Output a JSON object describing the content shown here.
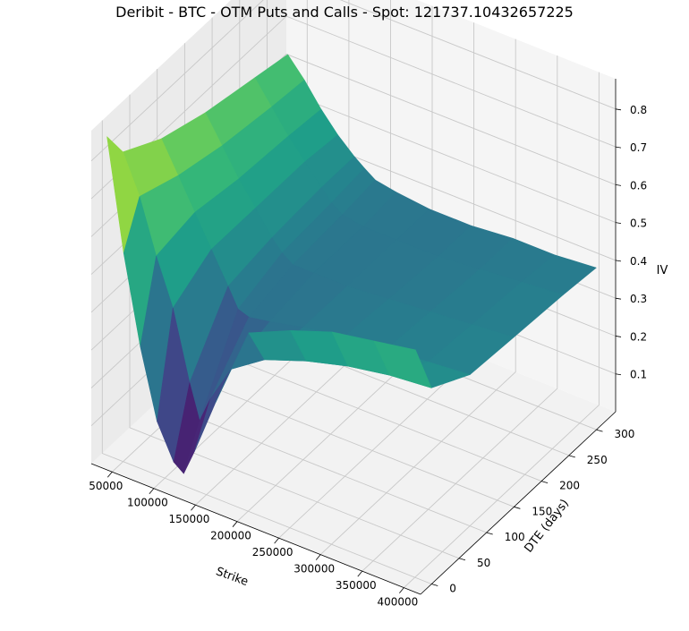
{
  "chart_data": {
    "type": "surface3d",
    "title": "Deribit - BTC - OTM Puts and Calls - Spot: 121737.10432657225",
    "xlabel": "Strike",
    "ylabel": "DTE (days)",
    "zlabel": "IV",
    "x_ticks": [
      "50000",
      "100000",
      "150000",
      "200000",
      "250000",
      "300000",
      "350000",
      "400000"
    ],
    "y_ticks": [
      "0",
      "50",
      "100",
      "150",
      "200",
      "250",
      "300"
    ],
    "z_ticks": [
      "0.1",
      "0.2",
      "0.3",
      "0.4",
      "0.5",
      "0.6",
      "0.7",
      "0.8"
    ],
    "xlim": [
      25000,
      420000
    ],
    "ylim": [
      -20,
      335
    ],
    "zlim": [
      0.0,
      0.88
    ],
    "colormap": "viridis",
    "grid": true,
    "strikes": [
      30000,
      50000,
      70000,
      90000,
      110000,
      122000,
      135000,
      160000,
      200000,
      250000,
      300000,
      350000,
      400000
    ],
    "dtes": [
      1,
      30,
      100,
      180,
      270,
      330
    ],
    "iv": [
      [
        0.84,
        0.55,
        0.32,
        0.14,
        0.05,
        0.03,
        0.1,
        0.25,
        0.47,
        0.52,
        0.56,
        0.58,
        0.6
      ],
      [
        0.76,
        0.66,
        0.52,
        0.4,
        0.22,
        0.13,
        0.2,
        0.3,
        0.36,
        0.4,
        0.43,
        0.45,
        0.46
      ],
      [
        0.7,
        0.62,
        0.54,
        0.46,
        0.38,
        0.33,
        0.32,
        0.33,
        0.35,
        0.37,
        0.38,
        0.39,
        0.4
      ],
      [
        0.66,
        0.59,
        0.52,
        0.46,
        0.4,
        0.37,
        0.35,
        0.35,
        0.35,
        0.36,
        0.37,
        0.38,
        0.39
      ],
      [
        0.63,
        0.57,
        0.51,
        0.46,
        0.41,
        0.38,
        0.36,
        0.35,
        0.35,
        0.35,
        0.36,
        0.37,
        0.38
      ],
      [
        0.61,
        0.56,
        0.5,
        0.45,
        0.41,
        0.39,
        0.37,
        0.36,
        0.35,
        0.35,
        0.36,
        0.36,
        0.37
      ]
    ]
  }
}
